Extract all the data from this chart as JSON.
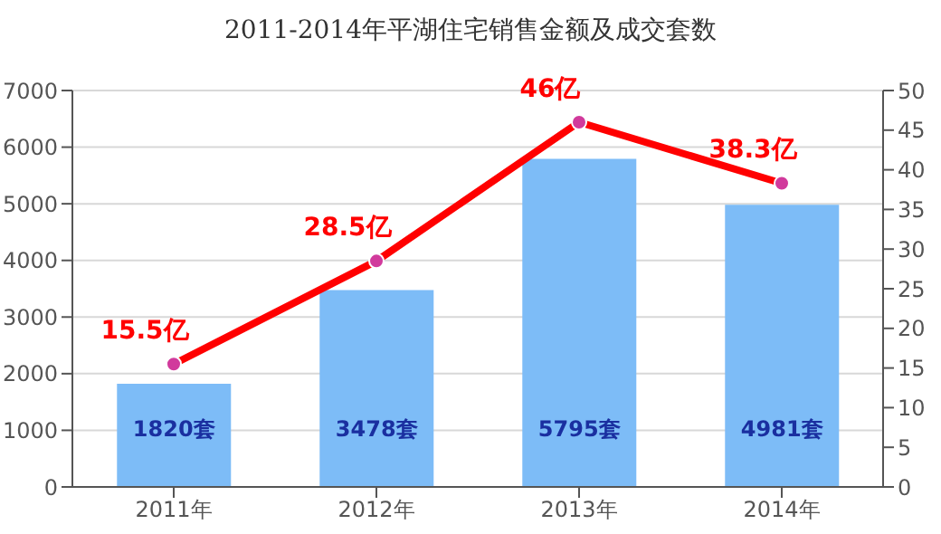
{
  "chart_data": {
    "type": "bar",
    "title": "2011-2014年平湖住宅销售金额及成交套数",
    "categories": [
      "2011年",
      "2012年",
      "2013年",
      "2014年"
    ],
    "series": [
      {
        "color": "#7dbcf7",
        "values": [
          1820,
          3478,
          5795,
          4981
        ],
        "value_labels": [
          "1820套",
          "3478套",
          "5795套",
          "4981套"
        ]
      },
      {
        "type": "line",
        "axis": "y2",
        "color": "#ff0000",
        "values": [
          15.5,
          28.5,
          46,
          38.3
        ],
        "value_labels": [
          "15.5亿",
          "28.5亿",
          "46亿",
          "38.3亿"
        ]
      }
    ],
    "ylim": [
      0,
      7000
    ],
    "yticks": [
      0,
      1000,
      2000,
      3000,
      4000,
      5000,
      6000,
      7000
    ],
    "y2lim": [
      0,
      50
    ],
    "y2ticks": [
      0,
      5,
      10,
      15,
      20,
      25,
      30,
      35,
      40,
      45,
      50
    ],
    "grid": "y",
    "marker": "circle",
    "legend": false
  }
}
